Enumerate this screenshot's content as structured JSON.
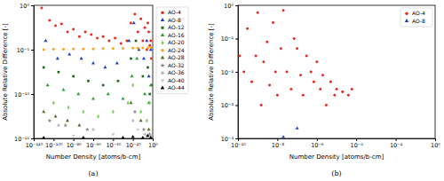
{
  "chart_data": [
    {
      "type": "scatter",
      "title": "(a)",
      "x_label": "Number Density [atoms/b-cm]",
      "y_label": "Absolute Relative Difference [-]",
      "log": true,
      "legend": "right",
      "xlim": [
        1e-120,
        1
      ],
      "ylim": [
        1e-15,
        1
      ],
      "xticks": [
        {
          "value": 1e-120,
          "label": "10⁻¹²⁰"
        },
        {
          "value": 1e-100,
          "label": "10⁻¹⁰⁰"
        },
        {
          "value": 1e-80,
          "label": "10⁻⁸⁰"
        },
        {
          "value": 1e-60,
          "label": "10⁻⁶⁰"
        },
        {
          "value": 1e-40,
          "label": "10⁻⁴⁰"
        },
        {
          "value": 1e-20,
          "label": "10⁻²⁰"
        },
        {
          "value": 1,
          "label": "10⁰"
        }
      ],
      "yticks": [
        {
          "value": 1e-15,
          "label": "10⁻¹⁵"
        },
        {
          "value": 1e-10,
          "label": "10⁻¹⁰"
        },
        {
          "value": 1e-05,
          "label": "10⁻⁵"
        },
        {
          "value": 1,
          "label": "10⁰"
        }
      ],
      "series": [
        {
          "name": "AO-4",
          "color": "#e8291c",
          "marker": "circle",
          "x": [
            1e-112,
            1e-104,
            1e-98,
            1e-92,
            1e-86,
            1e-80,
            1e-74,
            1e-68,
            1e-62,
            1e-56,
            1e-50,
            1e-44,
            1e-38,
            1e-32,
            1e-26,
            1e-22,
            1e-18,
            1e-15,
            1e-12,
            1e-10,
            1e-08,
            1e-06,
            1e-05,
            0.0001,
            0.001,
            0.01,
            0.03
          ],
          "values": [
            0.5,
            0.02,
            0.005,
            0.008,
            0.001,
            0.002,
            0.0003,
            0.001,
            0.0005,
            0.0002,
            0.0003,
            0.0001,
            0.0002,
            5e-05,
            0.0001,
            0.01,
            0.1,
            0.001,
            0.03,
            0.0001,
            0.003,
            1e-05,
            0.01,
            0.001,
            3e-05,
            0.0001,
            1e-06
          ]
        },
        {
          "name": "AO-8",
          "color": "#1f3fbf",
          "marker": "triangle",
          "x": [
            1e-108,
            1e-96,
            1e-84,
            1e-72,
            1e-60,
            1e-48,
            1e-36,
            1e-24,
            1e-19,
            1e-14,
            1e-09,
            1e-06,
            0.0001,
            0.01
          ],
          "values": [
            0.0001,
            1e-06,
            3e-06,
            1e-06,
            3e-07,
            1e-07,
            3e-07,
            0.0001,
            0.01,
            1e-05,
            1e-06,
            0.0001,
            1e-08,
            1e-05
          ]
        },
        {
          "name": "AO-12",
          "color": "#1a6b1a",
          "marker": "square",
          "x": [
            1e-110,
            1e-95,
            1e-80,
            1e-65,
            1e-50,
            1e-35,
            1e-22,
            1e-17,
            1e-10,
            1e-05,
            0.001,
            0.1
          ],
          "values": [
            1e-07,
            3e-08,
            1e-08,
            3e-09,
            1e-09,
            3e-09,
            1e-06,
            0.0001,
            1e-08,
            1e-07,
            1e-10,
            1e-09
          ]
        },
        {
          "name": "AO-16",
          "color": "#2ca02c",
          "marker": "triangle",
          "x": [
            1e-106,
            1e-90,
            1e-75,
            1e-60,
            1e-45,
            1e-30,
            1e-21,
            1e-16,
            1e-08,
            0.0001,
            0.01
          ],
          "values": [
            1e-09,
            3e-10,
            1e-10,
            3e-11,
            1e-10,
            3e-11,
            1e-08,
            1e-06,
            1e-10,
            1e-11,
            1e-09
          ]
        },
        {
          "name": "AO-20",
          "color": "#7ccd5c",
          "marker": "diamond",
          "x": [
            1e-100,
            1e-85,
            1e-70,
            1e-55,
            1e-40,
            1e-25,
            1e-20,
            1e-12,
            1e-06,
            0.001
          ],
          "values": [
            1e-11,
            3e-12,
            1e-12,
            3e-13,
            1e-12,
            1e-11,
            1e-09,
            1e-12,
            1e-13,
            1e-11
          ]
        },
        {
          "name": "AO-24",
          "color": "#ff9f1c",
          "marker": "circle",
          "x": [
            1e-110,
            1e-100,
            1e-90,
            1e-80,
            1e-70,
            1e-60,
            1e-50,
            1e-40,
            1e-30,
            1e-20,
            1e-15,
            1e-10,
            1e-05,
            0.01
          ],
          "values": [
            1e-05,
            1.1e-05,
            1.1e-05,
            1.2e-05,
            1.2e-05,
            1.2e-05,
            1.3e-05,
            1.3e-05,
            1.4e-05,
            1.5e-05,
            1.5e-05,
            1.6e-05,
            1.6e-05,
            1.7e-05
          ]
        },
        {
          "name": "AO-28",
          "color": "#556b2f",
          "marker": "triangle",
          "x": [
            1e-110,
            1e-98,
            1e-86,
            1e-74,
            1e-22,
            1e-12,
            0.0001
          ],
          "values": [
            1e-12,
            3e-13,
            1e-13,
            3e-14,
            1e-11,
            1e-13,
            1e-14
          ]
        },
        {
          "name": "AO-32",
          "color": "#808080",
          "marker": "star",
          "x": [
            1e-104,
            1e-88,
            1e-66,
            1e-18,
            1e-09,
            0.001
          ],
          "values": [
            1e-13,
            3e-14,
            1e-14,
            1e-12,
            1e-14,
            3e-15
          ]
        },
        {
          "name": "AO-36",
          "color": "#b0b0b0",
          "marker": "cross",
          "x": [
            1e-95,
            1e-60,
            1e-20,
            1e-08,
            0.01
          ],
          "values": [
            3e-14,
            1e-14,
            1e-13,
            3e-15,
            2e-15
          ]
        },
        {
          "name": "AO-40",
          "color": "#c8c8c8",
          "marker": "wye",
          "x": [
            1e-80,
            1e-40,
            1e-15,
            1e-06
          ],
          "values": [
            2e-15,
            3e-15,
            1e-14,
            2e-15
          ]
        },
        {
          "name": "AO-44",
          "color": "#000000",
          "marker": "triangle",
          "x": [
            1e-110,
            1e-70,
            1e-30,
            1e-20,
            1e-10,
            1e-05,
            0.01
          ],
          "values": [
            1.2e-15,
            1.2e-15,
            1.2e-15,
            1.5e-15,
            1.2e-15,
            2e-15,
            1.2e-15
          ]
        }
      ]
    },
    {
      "type": "scatter",
      "title": "(b)",
      "x_label": "Number Density [atoms/b-cm]",
      "y_label": "Absolute Relative Difference [-]",
      "log": true,
      "legend": "upper right",
      "xlim": [
        1e-10,
        1
      ],
      "ylim": [
        0.0001,
        1
      ],
      "xticks": [
        {
          "value": 1e-10,
          "label": "10⁻¹⁰"
        },
        {
          "value": 1e-08,
          "label": "10⁻⁸"
        },
        {
          "value": 1e-06,
          "label": "10⁻⁶"
        },
        {
          "value": 0.0001,
          "label": "10⁻⁴"
        },
        {
          "value": 0.01,
          "label": "10⁻²"
        },
        {
          "value": 1,
          "label": "10⁰"
        }
      ],
      "yticks": [
        {
          "value": 0.0001,
          "label": "10⁻⁴"
        },
        {
          "value": 0.001,
          "label": "10⁻³"
        },
        {
          "value": 0.01,
          "label": "10⁻²"
        },
        {
          "value": 0.1,
          "label": "10⁻¹"
        },
        {
          "value": 1,
          "label": "10⁰"
        }
      ],
      "series": [
        {
          "name": "AO-4",
          "color": "#e8291c",
          "marker": "circle",
          "x": [
            1.2e-10,
            2e-10,
            3e-10,
            5e-10,
            8e-10,
            1e-09,
            1.5e-09,
            2e-09,
            3e-09,
            4e-09,
            6e-09,
            8e-09,
            1e-08,
            1.5e-08,
            2e-08,
            3e-08,
            5e-08,
            7e-08,
            1e-07,
            1.5e-07,
            2e-07,
            3e-07,
            5e-07,
            7e-07,
            1e-06,
            1.5e-06,
            2e-06,
            3e-06,
            5e-06,
            8e-06,
            1e-05,
            2e-05,
            4e-05,
            6e-05
          ],
          "values": [
            0.03,
            0.01,
            0.2,
            0.005,
            0.03,
            0.6,
            0.001,
            0.02,
            0.08,
            0.004,
            0.3,
            0.01,
            0.002,
            0.05,
            0.7,
            0.01,
            0.003,
            0.1,
            0.05,
            0.008,
            0.002,
            0.03,
            0.01,
            0.005,
            0.02,
            0.003,
            0.008,
            0.001,
            0.005,
            0.002,
            0.003,
            0.0025,
            0.002,
            0.003
          ]
        },
        {
          "name": "AO-8",
          "color": "#1f3fbf",
          "marker": "triangle",
          "x": [
            2e-08,
            1e-07
          ],
          "values": [
            0.00011,
            0.0002
          ]
        }
      ]
    }
  ]
}
